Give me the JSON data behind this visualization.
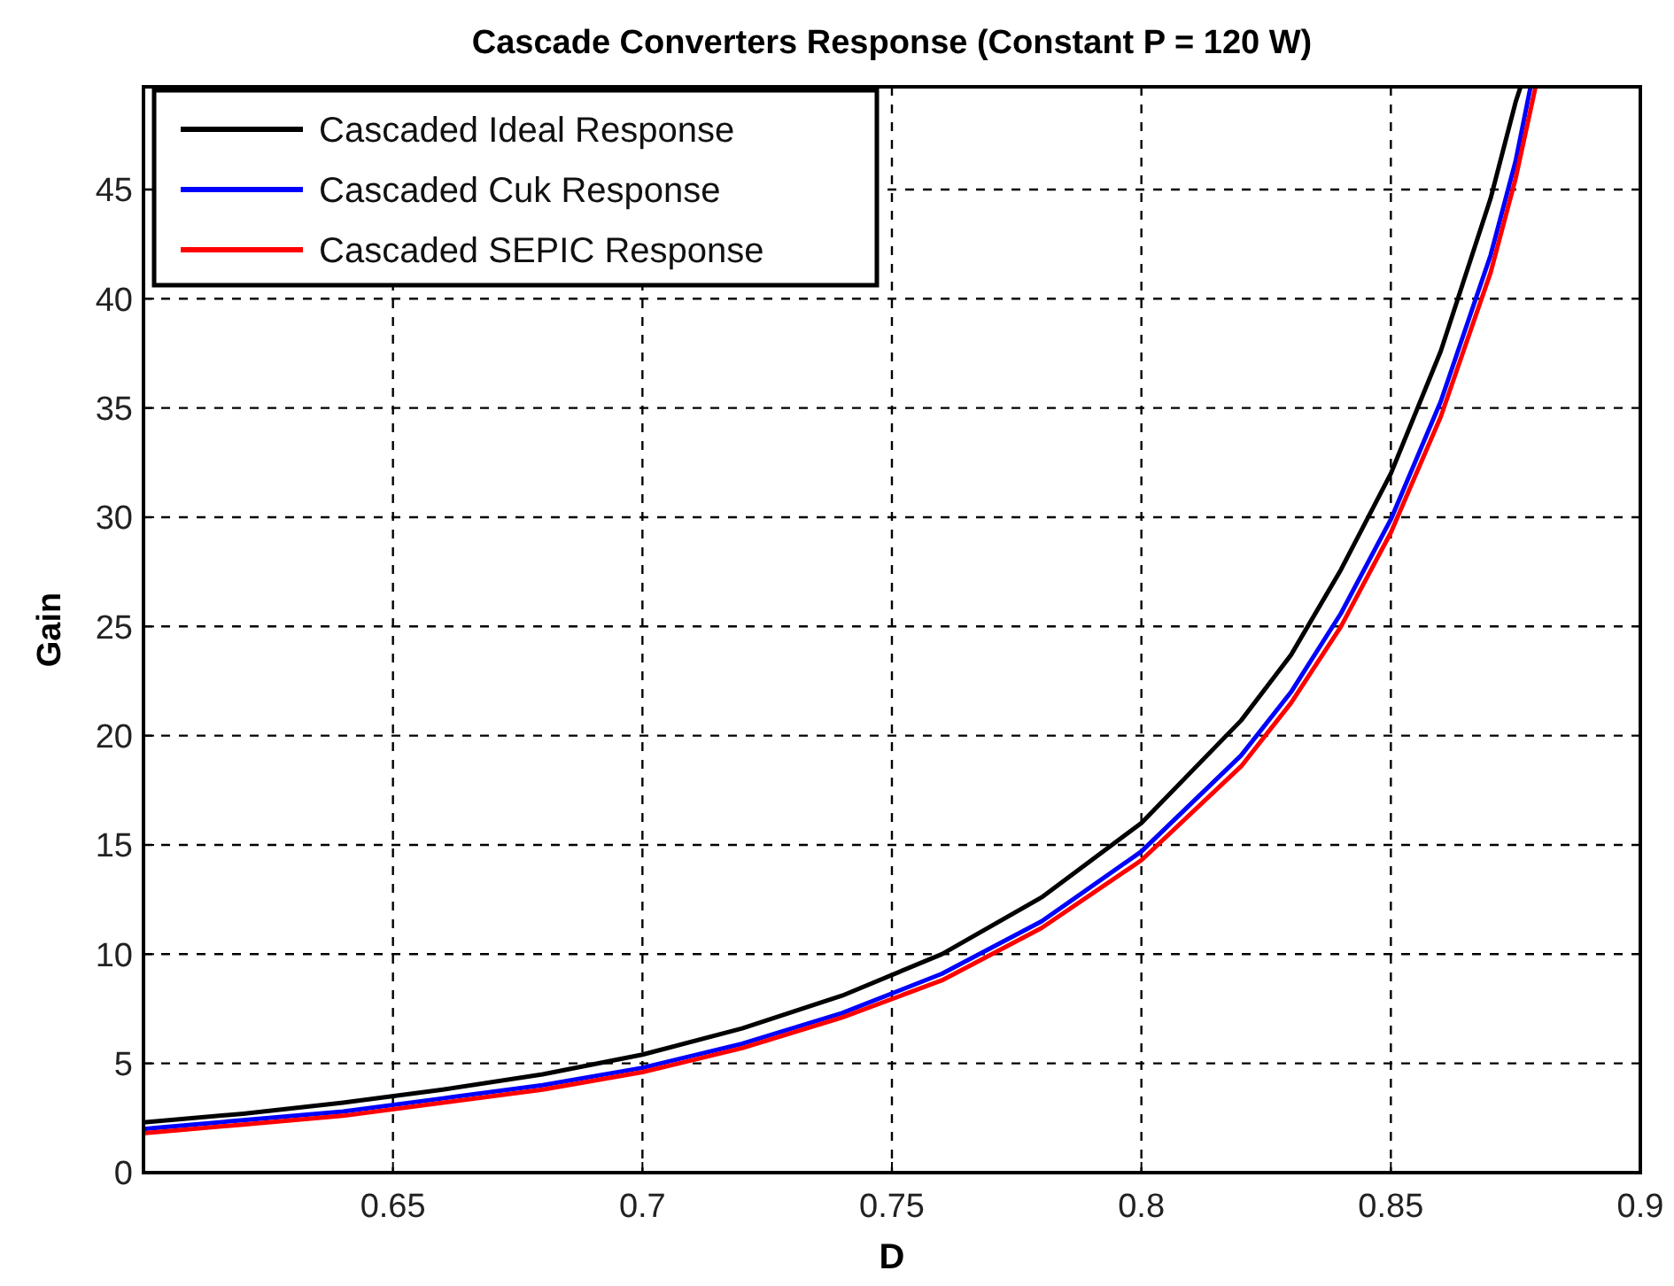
{
  "chart_data": {
    "type": "line",
    "title": "Cascade Converters Response (Constant P = 120 W)",
    "xlabel": "D",
    "ylabel": "Gain",
    "xlim": [
      0.6,
      0.9
    ],
    "ylim": [
      0,
      49.7
    ],
    "xticks": [
      0.65,
      0.7,
      0.75,
      0.8,
      0.85,
      0.9
    ],
    "yticks": [
      0,
      5,
      10,
      15,
      20,
      25,
      30,
      35,
      40,
      45
    ],
    "grid": true,
    "legend": "top left",
    "marker": "none",
    "line_style": "solid",
    "series": [
      {
        "name": "Cascaded Ideal Response",
        "color": "#000000",
        "x": [
          0.6,
          0.62,
          0.64,
          0.66,
          0.68,
          0.7,
          0.72,
          0.74,
          0.76,
          0.78,
          0.8,
          0.82,
          0.83,
          0.84,
          0.85,
          0.86,
          0.87,
          0.875,
          0.876
        ],
        "values": [
          2.3,
          2.7,
          3.2,
          3.8,
          4.5,
          5.4,
          6.6,
          8.1,
          10.0,
          12.6,
          16.0,
          20.7,
          23.7,
          27.6,
          32.0,
          37.6,
          44.6,
          49.0,
          49.7
        ]
      },
      {
        "name": "Cascaded Cuk Response",
        "color": "#0000ff",
        "x": [
          0.6,
          0.62,
          0.64,
          0.66,
          0.68,
          0.7,
          0.72,
          0.74,
          0.76,
          0.78,
          0.8,
          0.82,
          0.83,
          0.84,
          0.85,
          0.86,
          0.87,
          0.875,
          0.878
        ],
        "values": [
          2.0,
          2.4,
          2.8,
          3.4,
          4.0,
          4.8,
          5.9,
          7.3,
          9.1,
          11.5,
          14.7,
          19.1,
          22.0,
          25.6,
          29.9,
          35.3,
          42.0,
          46.3,
          49.7
        ]
      },
      {
        "name": "Cascaded SEPIC Response",
        "color": "#ff0000",
        "x": [
          0.6,
          0.62,
          0.64,
          0.66,
          0.68,
          0.7,
          0.72,
          0.74,
          0.76,
          0.78,
          0.8,
          0.82,
          0.83,
          0.84,
          0.85,
          0.86,
          0.87,
          0.875,
          0.879
        ],
        "values": [
          1.8,
          2.2,
          2.6,
          3.2,
          3.8,
          4.6,
          5.7,
          7.1,
          8.8,
          11.2,
          14.3,
          18.6,
          21.5,
          25.0,
          29.3,
          34.6,
          41.2,
          45.5,
          49.7
        ]
      }
    ]
  }
}
